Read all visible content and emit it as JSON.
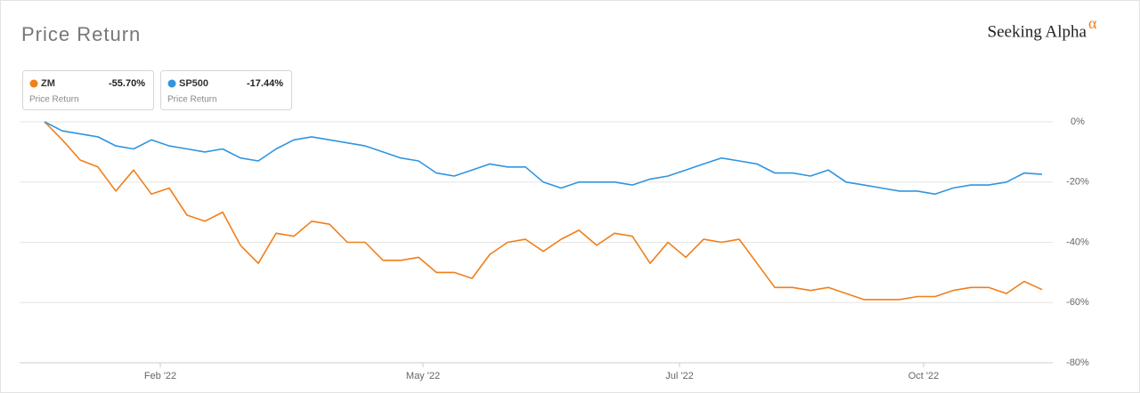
{
  "chart_data": {
    "type": "line",
    "title": "Price Return",
    "brand": "Seeking Alpha",
    "brand_mark": "α",
    "legend_caption": "Price Return",
    "x": [
      0,
      1,
      2,
      3,
      4,
      5,
      6,
      7,
      8,
      9,
      10,
      11,
      12,
      13,
      14,
      15,
      16,
      17,
      18,
      19,
      20,
      21,
      22,
      23,
      24,
      25,
      26,
      27,
      28,
      29,
      30,
      31,
      32,
      33,
      34,
      35,
      36,
      37,
      38,
      39,
      40,
      41,
      42,
      43,
      44,
      45,
      46,
      47,
      48,
      49,
      50,
      51,
      52,
      53,
      54,
      55,
      56
    ],
    "xlim": [
      0,
      56
    ],
    "xticks": [
      {
        "value": 6.5,
        "label": "Feb '22"
      },
      {
        "value": 21.25,
        "label": "May '22"
      },
      {
        "value": 35.65,
        "label": "Jul '22"
      },
      {
        "value": 49.35,
        "label": "Oct '22"
      }
    ],
    "ylim": [
      -80,
      0
    ],
    "yticks": [
      {
        "value": 0,
        "label": "0%"
      },
      {
        "value": -20,
        "label": "-20%"
      },
      {
        "value": -40,
        "label": "-40%"
      },
      {
        "value": -60,
        "label": "-60%"
      },
      {
        "value": -80,
        "label": "-80%"
      }
    ],
    "grid": true,
    "series": [
      {
        "name": "ZM",
        "color": "#f07f1a",
        "change": {
          "value": -55.7,
          "label": "-55.70%"
        },
        "values": [
          0,
          -6,
          -12.7,
          -15,
          -23,
          -16,
          -24,
          -22,
          -31,
          -33,
          -30,
          -41,
          -47,
          -37,
          -38,
          -33,
          -34,
          -40,
          -40,
          -46,
          -46,
          -45,
          -50,
          -50,
          -52,
          -44,
          -40,
          -39,
          -43,
          -39,
          -36,
          -41,
          -37,
          -38,
          -47,
          -40,
          -45,
          -39,
          -40,
          -39,
          -47,
          -55,
          -55,
          -56,
          -55,
          -57,
          -59,
          -59,
          -59,
          -58,
          -58,
          -56,
          -55,
          -55,
          -57,
          -53,
          -55.7
        ]
      },
      {
        "name": "SP500",
        "color": "#2f95e0",
        "change": {
          "value": -17.44,
          "label": "-17.44%"
        },
        "values": [
          0,
          -3,
          -4,
          -5,
          -8,
          -9,
          -6,
          -8,
          -9,
          -10,
          -9,
          -12,
          -13,
          -9,
          -6,
          -5,
          -6,
          -7,
          -8,
          -10,
          -12,
          -13,
          -17,
          -18,
          -16,
          -14,
          -15,
          -15,
          -20,
          -22,
          -20,
          -20,
          -20,
          -21,
          -19,
          -18,
          -16,
          -14,
          -12,
          -13,
          -14,
          -17,
          -17,
          -18,
          -16,
          -20,
          -21,
          -22,
          -23,
          -23,
          -24,
          -22,
          -21,
          -21,
          -20,
          -17,
          -17.44
        ]
      }
    ]
  }
}
